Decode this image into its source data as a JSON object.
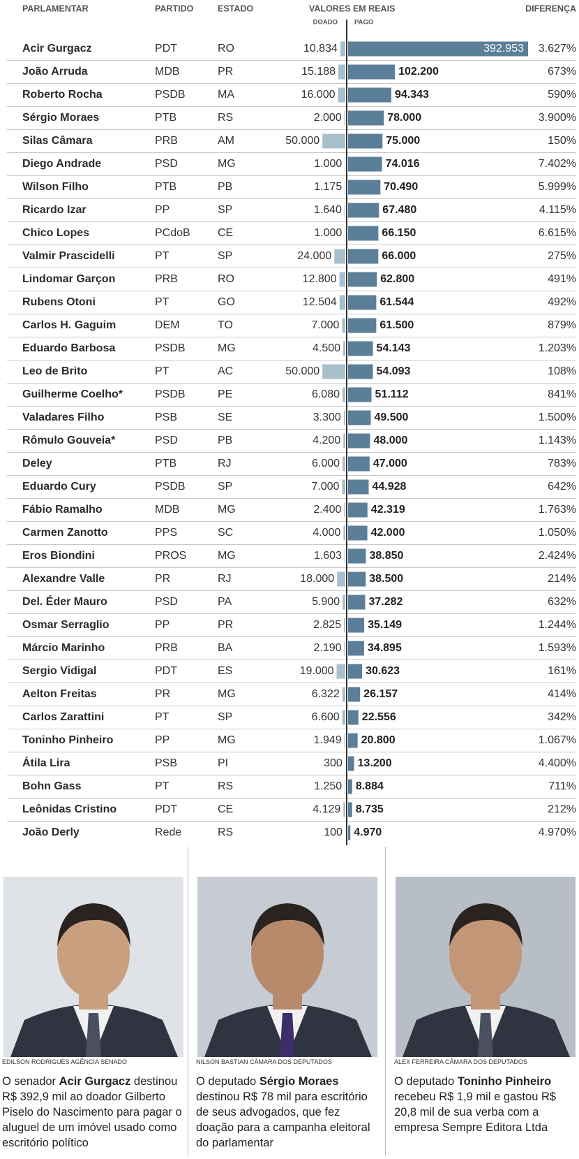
{
  "chart_data": {
    "type": "diverging_bar",
    "column_headers": {
      "name": "PARLAMENTAR",
      "party": "PARTIDO",
      "state": "ESTADO",
      "values": "VALORES EM REAIS"
    },
    "categories": [
      "Acir Gurgacz",
      "João Arruda",
      "Roberto Rocha",
      "Sérgio Moraes",
      "Silas Câmara",
      "Diego Andrade",
      "Wilson Filho",
      "Ricardo Izar",
      "Chico Lopes",
      "Valmir Prascidelli",
      "Lindomar Garçon",
      "Rubens Otoni",
      "Carlos H. Gaguim",
      "Eduardo Barbosa",
      "Leo de Brito",
      "Guilherme Coelho*",
      "Valadares Filho",
      "Rômulo Gouveia*",
      "Deley",
      "Eduardo Cury",
      "Fábio Ramalho",
      "Carmen Zanotto",
      "Eros Biondini",
      "Alexandre Valle",
      "Del. Éder Mauro",
      "Osmar Serraglio",
      "Márcio Marinho",
      "Sergio Vidigal",
      "Aelton Freitas",
      "Carlos Zarattini",
      "Toninho Pinheiro",
      "Átila Lira",
      "Bohn Gass",
      "Leônidas Cristino",
      "João Derly"
    ],
    "party": [
      "PDT",
      "MDB",
      "PSDB",
      "PTB",
      "PRB",
      "PSD",
      "PTB",
      "PP",
      "PCdoB",
      "PT",
      "PRB",
      "PT",
      "DEM",
      "PSDB",
      "PT",
      "PSDB",
      "PSB",
      "PSD",
      "PTB",
      "PSDB",
      "MDB",
      "PPS",
      "PROS",
      "PR",
      "PSD",
      "PP",
      "PRB",
      "PDT",
      "PR",
      "PT",
      "PP",
      "PSB",
      "PT",
      "PDT",
      "Rede"
    ],
    "state": [
      "RO",
      "PR",
      "MA",
      "RS",
      "AM",
      "MG",
      "PB",
      "SP",
      "CE",
      "SP",
      "RO",
      "GO",
      "TO",
      "MG",
      "AC",
      "PE",
      "SE",
      "PB",
      "RJ",
      "SP",
      "MG",
      "SC",
      "MG",
      "RJ",
      "PA",
      "PR",
      "BA",
      "ES",
      "MG",
      "SP",
      "MG",
      "PI",
      "RS",
      "CE",
      "RS"
    ],
    "series": [
      {
        "name": "DOADO",
        "color": "#a9bfcc",
        "values": [
          10834,
          15188,
          16000,
          2000,
          50000,
          1000,
          1175,
          1640,
          1000,
          24000,
          12800,
          12504,
          7000,
          4500,
          50000,
          6080,
          3300,
          4200,
          6000,
          7000,
          2400,
          4000,
          1603,
          18000,
          5900,
          2825,
          2190,
          19000,
          6322,
          6600,
          1949,
          300,
          1250,
          4129,
          100
        ],
        "value_labels": [
          "10.834",
          "15.188",
          "16.000",
          "2.000",
          "50.000",
          "1.000",
          "1.175",
          "1.640",
          "1.000",
          "24.000",
          "12.800",
          "12.504",
          "7.000",
          "4.500",
          "50.000",
          "6.080",
          "3.300",
          "4.200",
          "6.000",
          "7.000",
          "2.400",
          "4.000",
          "1.603",
          "18.000",
          "5.900",
          "2.825",
          "2.190",
          "19.000",
          "6.322",
          "6.600",
          "1.949",
          "300",
          "1.250",
          "4.129",
          "100"
        ]
      },
      {
        "name": "PAGO",
        "color": "#5b7f99",
        "values": [
          392953,
          102200,
          94343,
          78000,
          75000,
          74016,
          70490,
          67480,
          66150,
          66000,
          62800,
          61544,
          61500,
          54143,
          54093,
          51112,
          49500,
          48000,
          47000,
          44928,
          42319,
          42000,
          38850,
          38500,
          37282,
          35149,
          34895,
          30623,
          26157,
          22556,
          20800,
          13200,
          8884,
          8735,
          4970
        ],
        "value_labels": [
          "392.953",
          "102.200",
          "94.343",
          "78.000",
          "75.000",
          "74.016",
          "70.490",
          "67.480",
          "66.150",
          "66.000",
          "62.800",
          "61.544",
          "61.500",
          "54.143",
          "54.093",
          "51.112",
          "49.500",
          "48.000",
          "47.000",
          "44.928",
          "42.319",
          "42.000",
          "38.850",
          "38.500",
          "37.282",
          "35.149",
          "34.895",
          "30.623",
          "26.157",
          "22.556",
          "20.800",
          "13.200",
          "8.884",
          "8.735",
          "4.970"
        ]
      }
    ],
    "difference": {
      "name": "DIFERENÇA",
      "values": [
        3627,
        673,
        590,
        3900,
        150,
        7402,
        5999,
        4115,
        6615,
        275,
        491,
        492,
        879,
        1203,
        108,
        841,
        1500,
        1143,
        783,
        642,
        1763,
        1050,
        2424,
        214,
        632,
        1244,
        1593,
        161,
        414,
        342,
        1067,
        4400,
        711,
        212,
        4970
      ],
      "value_labels": [
        "3.627%",
        "673%",
        "590%",
        "3.900%",
        "150%",
        "7.402%",
        "5.999%",
        "4.115%",
        "6.615%",
        "275%",
        "491%",
        "492%",
        "879%",
        "1.203%",
        "108%",
        "841%",
        "1.500%",
        "1.143%",
        "783%",
        "642%",
        "1.763%",
        "1.050%",
        "2.424%",
        "214%",
        "632%",
        "1.244%",
        "1.593%",
        "161%",
        "414%",
        "342%",
        "1.067%",
        "4.400%",
        "711%",
        "212%",
        "4.970%"
      ]
    }
  },
  "photos": [
    {
      "credit": "EDILSON RODRIGUES AGÊNCIA SENADO",
      "text_before": "O senador ",
      "name": "Acir Gurgacz",
      "text_after": " destinou R$ 392,9 mil ao doador Gilberto Piselo do Nascimento para pagar o aluguel de um imóvel usado como escritório político"
    },
    {
      "credit": "NILSON BASTIAN CÂMARA DOS DEPUTADOS",
      "text_before": "O deputado ",
      "name": "Sérgio Moraes",
      "text_after": " destinou R$ 78 mil para escritório de seus advogados, que fez doação para a campanha eleitoral do parlamentar"
    },
    {
      "credit": "ALEX FERREIRA CÂMARA DOS DEPUTADOS",
      "text_before": "O deputado ",
      "name": "Toninho Pinheiro",
      "text_after": " recebeu R$ 1,9 mil e gastou R$ 20,8 mil de sua verba com a empresa Sempre Editora Ltda"
    }
  ]
}
